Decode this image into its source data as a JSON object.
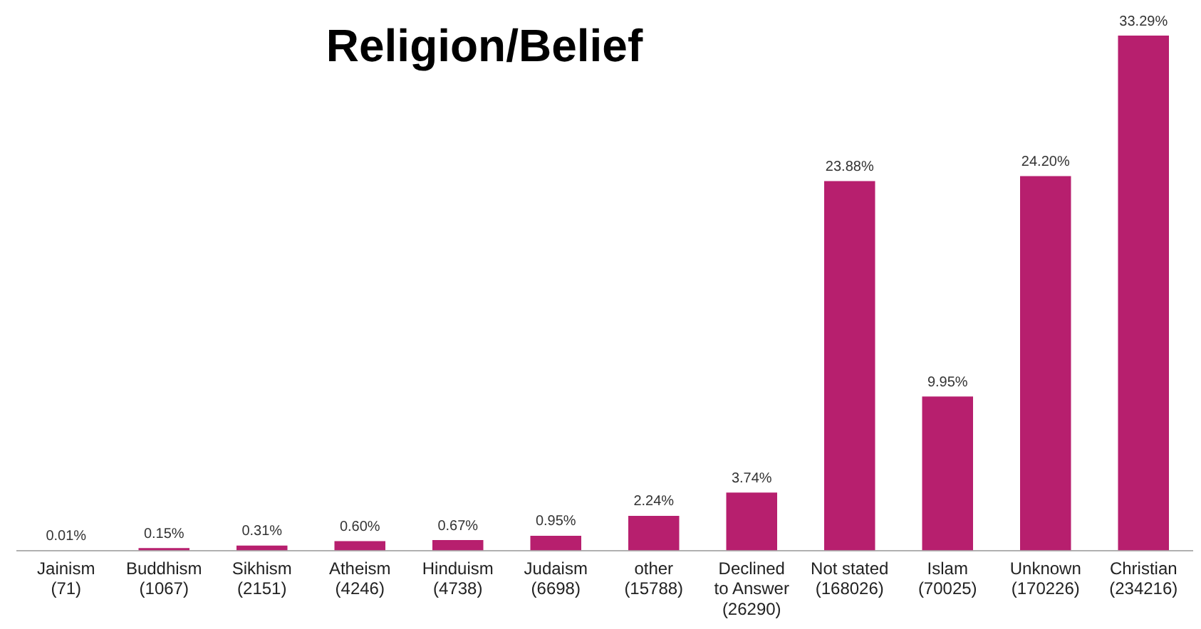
{
  "chart_data": {
    "type": "bar",
    "title": "Religion/Belief",
    "categories": [
      "Jainism\n(71)",
      "Buddhism\n(1067)",
      "Sikhism\n(2151)",
      "Atheism\n(4246)",
      "Hinduism\n(4738)",
      "Judaism\n(6698)",
      "other\n(15788)",
      "Declined\nto Answer\n(26290)",
      "Not stated\n(168026)",
      "Islam\n(70025)",
      "Unknown\n(170226)",
      "Christian\n(234216)"
    ],
    "values": [
      0.01,
      0.15,
      0.31,
      0.6,
      0.67,
      0.95,
      2.24,
      3.74,
      23.88,
      9.95,
      24.2,
      33.29
    ],
    "value_labels": [
      "0.01%",
      "0.15%",
      "0.31%",
      "0.60%",
      "0.67%",
      "0.95%",
      "2.24%",
      "3.74%",
      "23.88%",
      "9.95%",
      "24.20%",
      "33.29%"
    ],
    "color": "#b71f6e",
    "grid": false,
    "legend": false
  }
}
